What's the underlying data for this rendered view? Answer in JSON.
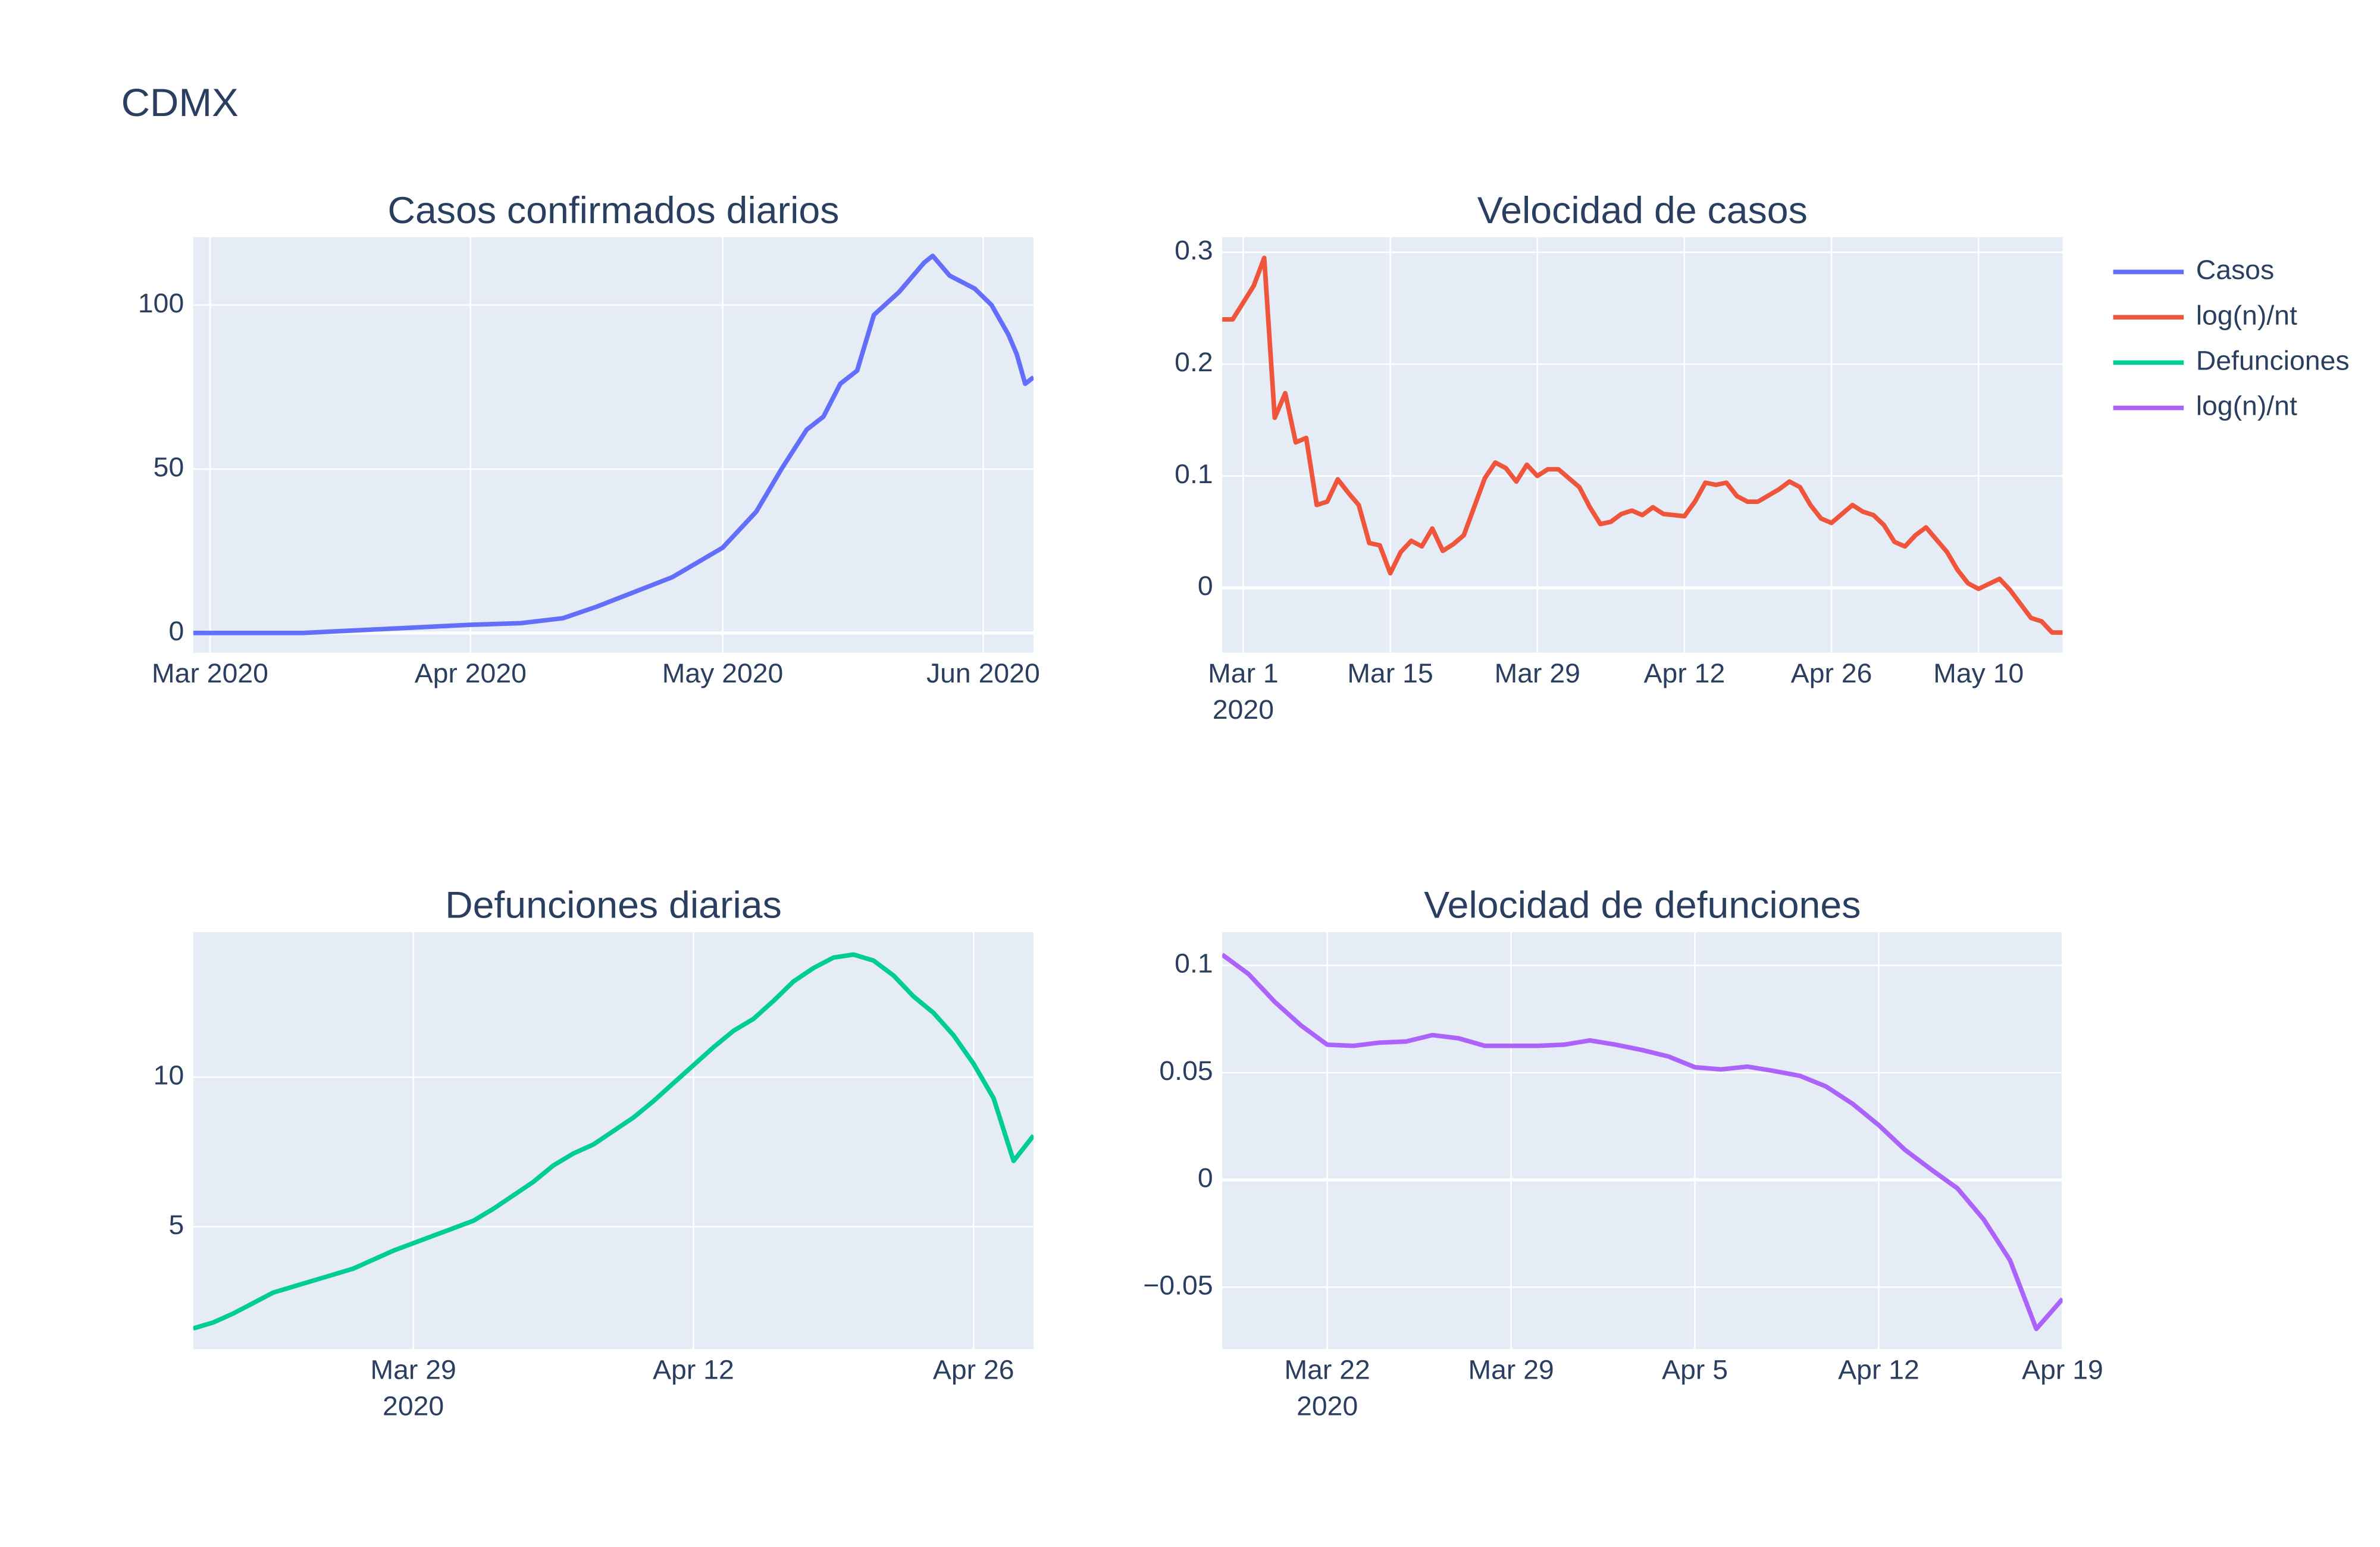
{
  "title": "CDMX",
  "chart_data": [
    {
      "type": "line",
      "title": "Casos confirmados diarios",
      "x": [
        "2020-02-28",
        "2020-03-05",
        "2020-03-12",
        "2020-03-20",
        "2020-03-28",
        "2020-04-01",
        "2020-04-07",
        "2020-04-12",
        "2020-04-16",
        "2020-04-20",
        "2020-04-25",
        "2020-05-01",
        "2020-05-05",
        "2020-05-08",
        "2020-05-11",
        "2020-05-13",
        "2020-05-15",
        "2020-05-17",
        "2020-05-19",
        "2020-05-22",
        "2020-05-25",
        "2020-05-26",
        "2020-05-28",
        "2020-05-31",
        "2020-06-02",
        "2020-06-04",
        "2020-06-05",
        "2020-06-06",
        "2020-06-07"
      ],
      "series": [
        {
          "name": "Casos",
          "color": "#636efa",
          "values": [
            0,
            0,
            0,
            1,
            2,
            2.5,
            3,
            4.5,
            8,
            12,
            17,
            26,
            37,
            50,
            62,
            66,
            76,
            80,
            97,
            104,
            113,
            115,
            109,
            105,
            100,
            91,
            85,
            76,
            78
          ]
        }
      ],
      "xlim": [
        "2020-02-28",
        "2020-06-07"
      ],
      "ylim": [
        -6,
        120.7
      ],
      "xticks": [
        {
          "value": "2020-03-01",
          "label": "Mar 2020"
        },
        {
          "value": "2020-04-01",
          "label": "Apr 2020"
        },
        {
          "value": "2020-05-01",
          "label": "May 2020"
        },
        {
          "value": "2020-06-01",
          "label": "Jun 2020"
        }
      ],
      "yticks": [
        0,
        50,
        100
      ]
    },
    {
      "type": "line",
      "title": "Velocidad de casos",
      "x": [
        "2020-02-28",
        "2020-02-29",
        "2020-03-01",
        "2020-03-02",
        "2020-03-03",
        "2020-03-04",
        "2020-03-05",
        "2020-03-06",
        "2020-03-07",
        "2020-03-08",
        "2020-03-09",
        "2020-03-10",
        "2020-03-11",
        "2020-03-12",
        "2020-03-13",
        "2020-03-14",
        "2020-03-15",
        "2020-03-16",
        "2020-03-17",
        "2020-03-18",
        "2020-03-19",
        "2020-03-20",
        "2020-03-21",
        "2020-03-22",
        "2020-03-24",
        "2020-03-25",
        "2020-03-26",
        "2020-03-27",
        "2020-03-28",
        "2020-03-29",
        "2020-03-30",
        "2020-03-31",
        "2020-04-02",
        "2020-04-03",
        "2020-04-04",
        "2020-04-05",
        "2020-04-06",
        "2020-04-07",
        "2020-04-08",
        "2020-04-09",
        "2020-04-10",
        "2020-04-12",
        "2020-04-13",
        "2020-04-14",
        "2020-04-15",
        "2020-04-16",
        "2020-04-17",
        "2020-04-18",
        "2020-04-19",
        "2020-04-21",
        "2020-04-22",
        "2020-04-23",
        "2020-04-24",
        "2020-04-25",
        "2020-04-26",
        "2020-04-28",
        "2020-04-29",
        "2020-04-30",
        "2020-05-01",
        "2020-05-02",
        "2020-05-03",
        "2020-05-04",
        "2020-05-05",
        "2020-05-06",
        "2020-05-07",
        "2020-05-08",
        "2020-05-09",
        "2020-05-10",
        "2020-05-12",
        "2020-05-13",
        "2020-05-15",
        "2020-05-16",
        "2020-05-17",
        "2020-05-18"
      ],
      "series": [
        {
          "name": "log(n)/nt",
          "color": "#ef553b",
          "values": [
            0.24,
            0.24,
            0.255,
            0.27,
            0.295,
            0.152,
            0.174,
            0.13,
            0.134,
            0.074,
            0.077,
            0.097,
            0.085,
            0.074,
            0.04,
            0.038,
            0.013,
            0.032,
            0.042,
            0.037,
            0.053,
            0.033,
            0.039,
            0.047,
            0.098,
            0.112,
            0.107,
            0.095,
            0.11,
            0.1,
            0.106,
            0.106,
            0.09,
            0.072,
            0.057,
            0.059,
            0.066,
            0.069,
            0.065,
            0.072,
            0.066,
            0.064,
            0.077,
            0.094,
            0.092,
            0.094,
            0.082,
            0.077,
            0.077,
            0.088,
            0.095,
            0.09,
            0.074,
            0.062,
            0.058,
            0.074,
            0.068,
            0.065,
            0.056,
            0.041,
            0.037,
            0.047,
            0.054,
            0.043,
            0.032,
            0.016,
            0.004,
            -0.001,
            0.008,
            -0.002,
            -0.027,
            -0.03,
            -0.04,
            -0.04
          ]
        }
      ],
      "xlim": [
        "2020-02-28",
        "2020-05-18"
      ],
      "ylim": [
        -0.058,
        0.3135
      ],
      "xticks": [
        {
          "value": "2020-03-01",
          "label": "Mar 1"
        },
        {
          "value": "2020-03-15",
          "label": "Mar 15"
        },
        {
          "value": "2020-03-29",
          "label": "Mar 29"
        },
        {
          "value": "2020-04-12",
          "label": "Apr 12"
        },
        {
          "value": "2020-04-26",
          "label": "Apr 26"
        },
        {
          "value": "2020-05-10",
          "label": "May 10"
        }
      ],
      "x_year_label": "2020",
      "yticks": [
        0,
        0.1,
        0.2,
        0.3
      ]
    },
    {
      "type": "line",
      "title": "Defunciones diarias",
      "x": [
        "2020-03-18",
        "2020-03-19",
        "2020-03-20",
        "2020-03-21",
        "2020-03-22",
        "2020-03-23",
        "2020-03-24",
        "2020-03-25",
        "2020-03-26",
        "2020-03-27",
        "2020-03-28",
        "2020-03-29",
        "2020-03-30",
        "2020-03-31",
        "2020-04-01",
        "2020-04-02",
        "2020-04-03",
        "2020-04-04",
        "2020-04-05",
        "2020-04-06",
        "2020-04-07",
        "2020-04-08",
        "2020-04-09",
        "2020-04-10",
        "2020-04-11",
        "2020-04-12",
        "2020-04-13",
        "2020-04-14",
        "2020-04-15",
        "2020-04-16",
        "2020-04-17",
        "2020-04-18",
        "2020-04-19",
        "2020-04-20",
        "2020-04-21",
        "2020-04-22",
        "2020-04-23",
        "2020-04-24",
        "2020-04-25",
        "2020-04-26",
        "2020-04-27",
        "2020-04-28",
        "2020-04-29"
      ],
      "series": [
        {
          "name": "Defunciones",
          "color": "#00cc96",
          "values": [
            1.6,
            1.8,
            2.1,
            2.45,
            2.8,
            3.0,
            3.2,
            3.4,
            3.6,
            3.9,
            4.2,
            4.45,
            4.7,
            4.95,
            5.2,
            5.6,
            6.05,
            6.5,
            7.05,
            7.45,
            7.75,
            8.2,
            8.65,
            9.2,
            9.8,
            10.4,
            11.0,
            11.55,
            11.95,
            12.55,
            13.2,
            13.65,
            14.0,
            14.1,
            13.9,
            13.4,
            12.7,
            12.15,
            11.4,
            10.45,
            9.3,
            7.2,
            8.05
          ]
        }
      ],
      "xlim": [
        "2020-03-18",
        "2020-04-29"
      ],
      "ylim": [
        0.91,
        14.85
      ],
      "xticks": [
        {
          "value": "2020-03-29",
          "label": "Mar 29"
        },
        {
          "value": "2020-04-12",
          "label": "Apr 12"
        },
        {
          "value": "2020-04-26",
          "label": "Apr 26"
        }
      ],
      "x_year_label": "2020",
      "yticks": [
        5,
        10
      ]
    },
    {
      "type": "line",
      "title": "Velocidad de defunciones",
      "x": [
        "2020-03-18",
        "2020-03-19",
        "2020-03-20",
        "2020-03-21",
        "2020-03-22",
        "2020-03-23",
        "2020-03-24",
        "2020-03-25",
        "2020-03-26",
        "2020-03-27",
        "2020-03-28",
        "2020-03-29",
        "2020-03-30",
        "2020-03-31",
        "2020-04-01",
        "2020-04-02",
        "2020-04-03",
        "2020-04-04",
        "2020-04-05",
        "2020-04-06",
        "2020-04-07",
        "2020-04-08",
        "2020-04-09",
        "2020-04-10",
        "2020-04-11",
        "2020-04-12",
        "2020-04-13",
        "2020-04-14",
        "2020-04-15",
        "2020-04-16",
        "2020-04-17",
        "2020-04-18",
        "2020-04-19"
      ],
      "series": [
        {
          "name": "log(n)/nt",
          "color": "#ab63fa",
          "values": [
            0.105,
            0.096,
            0.083,
            0.072,
            0.063,
            0.0625,
            0.064,
            0.0645,
            0.0675,
            0.066,
            0.0625,
            0.0625,
            0.0625,
            0.063,
            0.065,
            0.063,
            0.0605,
            0.0575,
            0.0525,
            0.0515,
            0.0528,
            0.0508,
            0.0485,
            0.0435,
            0.0355,
            0.0255,
            0.014,
            0.0048,
            -0.004,
            -0.0185,
            -0.0375,
            -0.0695,
            -0.0555
          ]
        }
      ],
      "xlim": [
        "2020-03-18",
        "2020-04-19"
      ],
      "ylim": [
        -0.0789,
        0.1155
      ],
      "xticks": [
        {
          "value": "2020-03-22",
          "label": "Mar 22"
        },
        {
          "value": "2020-03-29",
          "label": "Mar 29"
        },
        {
          "value": "2020-04-05",
          "label": "Apr 5"
        },
        {
          "value": "2020-04-12",
          "label": "Apr 12"
        },
        {
          "value": "2020-04-19",
          "label": "Apr 19"
        }
      ],
      "x_year_label": "2020",
      "yticks": [
        {
          "value": -0.05,
          "label": "−0.05"
        },
        0,
        0.05,
        0.1
      ]
    }
  ]
}
